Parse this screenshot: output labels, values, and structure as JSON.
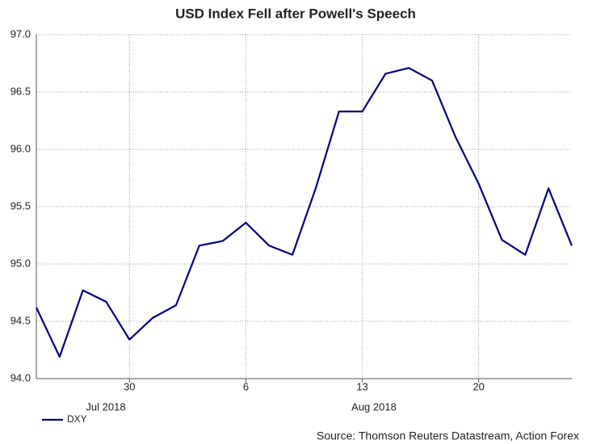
{
  "chart_data": {
    "type": "line",
    "title": "USD Index Fell after Powell's Speech",
    "categories": [
      null,
      null,
      null,
      null,
      "30",
      null,
      null,
      null,
      null,
      "6",
      null,
      null,
      null,
      null,
      "13",
      null,
      null,
      null,
      null,
      "20",
      null,
      null,
      null,
      null
    ],
    "x_group_labels": [
      "Jul 2018",
      "Aug 2018"
    ],
    "series": [
      {
        "name": "DXY",
        "color": "#000080",
        "values": [
          94.62,
          94.19,
          94.77,
          94.67,
          94.34,
          94.53,
          94.64,
          95.16,
          95.2,
          95.36,
          95.16,
          95.08,
          95.66,
          96.33,
          96.33,
          96.66,
          96.71,
          96.6,
          96.11,
          95.7,
          95.21,
          95.08,
          95.66,
          95.16
        ]
      }
    ],
    "ylim": [
      94,
      97
    ],
    "yticks": [
      {
        "value": 94,
        "label": "94.0"
      },
      {
        "value": 94.5,
        "label": "94.5"
      },
      {
        "value": 95,
        "label": "95.0"
      },
      {
        "value": 95.5,
        "label": "95.5"
      },
      {
        "value": 96,
        "label": "96.0"
      },
      {
        "value": 96.5,
        "label": "96.5"
      },
      {
        "value": 97,
        "label": "97.0"
      }
    ],
    "grid": true,
    "source": "Source: Thomson Reuters Datastream, Action Forex"
  }
}
